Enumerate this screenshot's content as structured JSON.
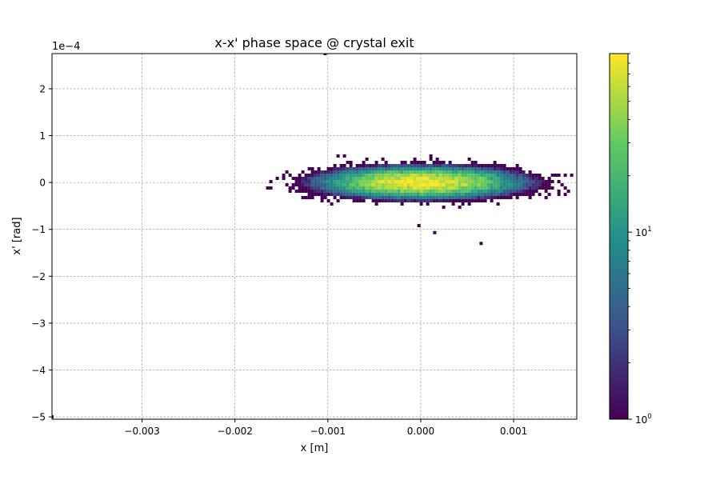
{
  "chart_data": {
    "type": "heatmap",
    "title": "x-x' phase space @ crystal exit",
    "xlabel": "x [m]",
    "ylabel": "x' [rad]",
    "xlim": [
      -0.00397,
      0.00168
    ],
    "ylim": [
      -5.05,
      2.75
    ],
    "y_offset_label": "1e−4",
    "xticks": [
      {
        "value": -0.003,
        "label": "−0.003"
      },
      {
        "value": -0.002,
        "label": "−0.002"
      },
      {
        "value": -0.001,
        "label": "−0.001"
      },
      {
        "value": 0.0,
        "label": "0.000"
      },
      {
        "value": 0.001,
        "label": "0.001"
      }
    ],
    "yticks": [
      {
        "value": 2,
        "label": "2"
      },
      {
        "value": 1,
        "label": "1"
      },
      {
        "value": 0,
        "label": "0"
      },
      {
        "value": -1,
        "label": "−1"
      },
      {
        "value": -2,
        "label": "−2"
      },
      {
        "value": -3,
        "label": "−3"
      },
      {
        "value": -4,
        "label": "−4"
      },
      {
        "value": -5,
        "label": "−5"
      }
    ],
    "grid": true,
    "colormap": [
      "#440154",
      "#3b528b",
      "#21918c",
      "#5ec962",
      "#fde725"
    ],
    "colorbar": {
      "scale": "log",
      "min": 1,
      "max": 90,
      "ticks": [
        {
          "value": 1,
          "label": "10",
          "exponent": "0"
        },
        {
          "value": 10,
          "label": "10",
          "exponent": "1"
        }
      ]
    },
    "distribution": {
      "center_x": 0.0,
      "center_y": 0.0,
      "sigma_x": 0.00045,
      "sigma_y": 0.14,
      "x_extent": [
        -0.0017,
        0.00168
      ],
      "y_extent": [
        -0.55,
        0.6
      ],
      "peak_count": 90
    },
    "outliers": [
      {
        "x": -0.00103,
        "y": 2.75
      },
      {
        "x": -2e-05,
        "y": -0.92
      },
      {
        "x": 0.00015,
        "y": -1.07
      },
      {
        "x": 0.00065,
        "y": -1.3
      },
      {
        "x": -0.00397,
        "y": -5.0
      }
    ]
  }
}
